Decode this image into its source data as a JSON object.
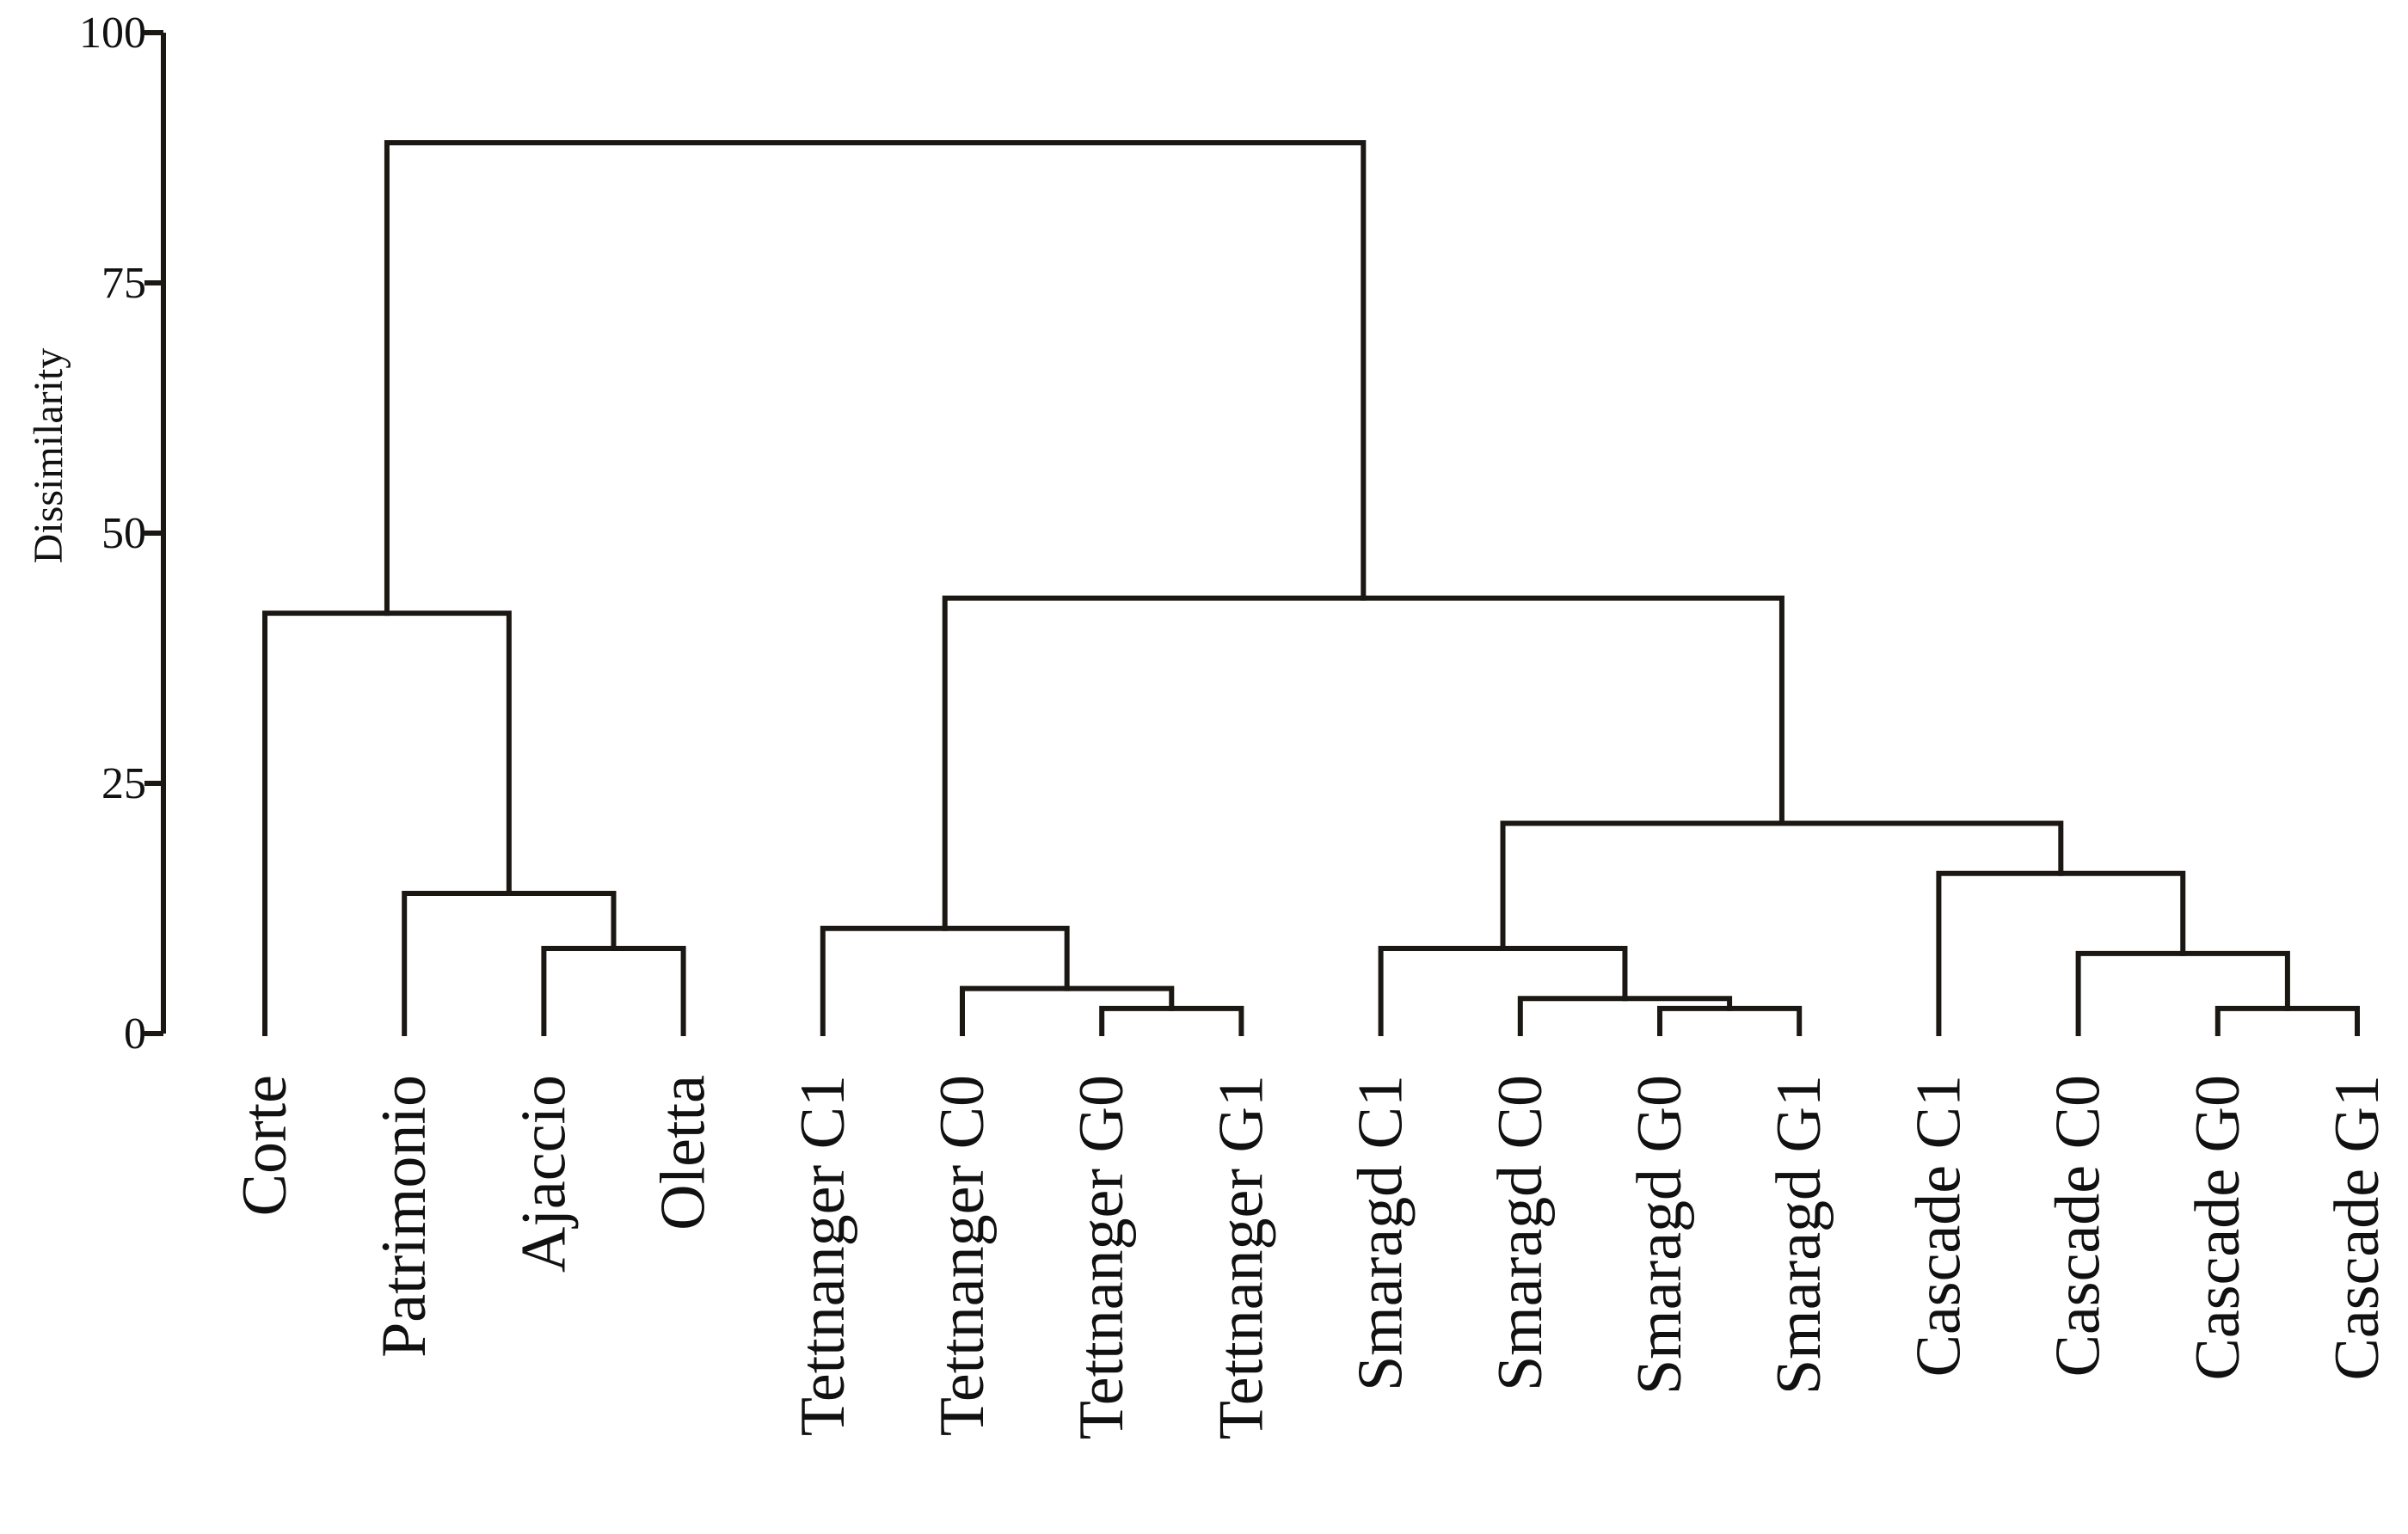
{
  "chart_data": {
    "type": "dendrogram",
    "title": "",
    "xlabel": "",
    "ylabel": "Dissimilarity",
    "ylim": [
      0,
      100
    ],
    "yticks": [
      "0",
      "25",
      "50",
      "75",
      "100"
    ],
    "leaves": [
      "Corte",
      "Patrimonio",
      "Ajaccio",
      "Oletta",
      "Tettnanger  C1",
      "Tettnanger  C0",
      "Tettnanger  G0",
      "Tettnanger  G1",
      "Smaragd  C1",
      "Smaragd  C0",
      "Smaragd  G0",
      "Smaragd  G1",
      "Cascade  C1",
      "Cascade  C0",
      "Cascade  G0",
      "Cascade  G1"
    ],
    "merges": [
      {
        "id": "m1",
        "left": "leaf:2",
        "right": "leaf:3",
        "height": 8.5
      },
      {
        "id": "m2",
        "left": "leaf:1",
        "right": "m1",
        "height": 14
      },
      {
        "id": "m3",
        "left": "leaf:0",
        "right": "m2",
        "height": 42
      },
      {
        "id": "m4",
        "left": "leaf:6",
        "right": "leaf:7",
        "height": 2.5
      },
      {
        "id": "m5",
        "left": "leaf:5",
        "right": "m4",
        "height": 4.5
      },
      {
        "id": "m6",
        "left": "leaf:4",
        "right": "m5",
        "height": 10.5
      },
      {
        "id": "m7",
        "left": "leaf:10",
        "right": "leaf:11",
        "height": 2.5
      },
      {
        "id": "m8",
        "left": "leaf:9",
        "right": "m7",
        "height": 3.5
      },
      {
        "id": "m9",
        "left": "leaf:8",
        "right": "m8",
        "height": 8.5
      },
      {
        "id": "m10",
        "left": "leaf:14",
        "right": "leaf:15",
        "height": 2.5
      },
      {
        "id": "m11",
        "left": "leaf:13",
        "right": "m10",
        "height": 8
      },
      {
        "id": "m12",
        "left": "leaf:12",
        "right": "m11",
        "height": 16
      },
      {
        "id": "m13",
        "left": "m9",
        "right": "m12",
        "height": 21
      },
      {
        "id": "m14",
        "left": "m6",
        "right": "m13",
        "height": 43.5
      },
      {
        "id": "m15",
        "left": "m3",
        "right": "m14",
        "height": 89
      }
    ]
  }
}
